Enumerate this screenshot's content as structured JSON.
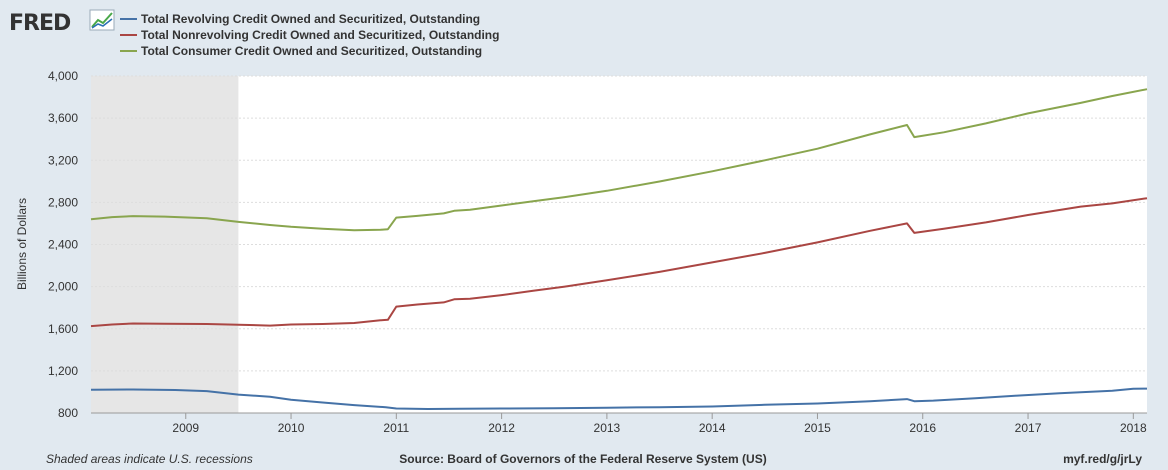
{
  "header": {
    "logo_text": "FRED",
    "logo_icon": "trend-line-icon"
  },
  "legend": [
    {
      "name": "Total Revolving Credit Owned and Securitized, Outstanding",
      "color": "#4572a7"
    },
    {
      "name": "Total Nonrevolving Credit Owned and Securitized, Outstanding",
      "color": "#aa4643"
    },
    {
      "name": "Total Consumer Credit Owned and Securitized, Outstanding",
      "color": "#89a54e"
    }
  ],
  "footer": {
    "recession_note": "Shaded areas indicate U.S. recessions",
    "source": "Source: Board of Governors of the Federal Reserve System (US)",
    "short_url": "myf.red/g/jrLy"
  },
  "chart_data": {
    "type": "line",
    "ylabel": "Billions of Dollars",
    "xlabel": "",
    "ylim": [
      800,
      4000
    ],
    "xlim": [
      2008.1,
      2018.13
    ],
    "y_ticks": [
      800,
      1200,
      1600,
      2000,
      2400,
      2800,
      3200,
      3600,
      4000
    ],
    "y_tick_labels": [
      "800",
      "1,200",
      "1,600",
      "2,000",
      "2,400",
      "2,800",
      "3,200",
      "3,600",
      "4,000"
    ],
    "x_ticks": [
      2009,
      2010,
      2011,
      2012,
      2013,
      2014,
      2015,
      2016,
      2017,
      2018
    ],
    "x_tick_labels": [
      "2009",
      "2010",
      "2011",
      "2012",
      "2013",
      "2014",
      "2015",
      "2016",
      "2017",
      "2018"
    ],
    "recessions": [
      {
        "start": 2008.1,
        "end": 2009.5
      }
    ],
    "grid": true,
    "legend_position": "top-left",
    "series": [
      {
        "name": "Total Revolving Credit Owned and Securitized, Outstanding",
        "color": "#4572a7",
        "points": [
          [
            2008.1,
            1020
          ],
          [
            2008.5,
            1023
          ],
          [
            2008.9,
            1018
          ],
          [
            2009.2,
            1008
          ],
          [
            2009.5,
            975
          ],
          [
            2009.8,
            955
          ],
          [
            2010.0,
            925
          ],
          [
            2010.3,
            900
          ],
          [
            2010.6,
            875
          ],
          [
            2010.9,
            855
          ],
          [
            2011.0,
            843
          ],
          [
            2011.3,
            838
          ],
          [
            2011.6,
            840
          ],
          [
            2012.0,
            843
          ],
          [
            2012.5,
            845
          ],
          [
            2013.0,
            850
          ],
          [
            2013.5,
            855
          ],
          [
            2014.0,
            862
          ],
          [
            2014.5,
            878
          ],
          [
            2015.0,
            890
          ],
          [
            2015.5,
            912
          ],
          [
            2015.85,
            932
          ],
          [
            2015.92,
            912
          ],
          [
            2016.1,
            918
          ],
          [
            2016.5,
            940
          ],
          [
            2016.9,
            965
          ],
          [
            2017.3,
            988
          ],
          [
            2017.8,
            1012
          ],
          [
            2018.0,
            1030
          ],
          [
            2018.13,
            1032
          ]
        ]
      },
      {
        "name": "Total Nonrevolving Credit Owned and Securitized, Outstanding",
        "color": "#aa4643",
        "points": [
          [
            2008.1,
            1625
          ],
          [
            2008.3,
            1640
          ],
          [
            2008.5,
            1650
          ],
          [
            2008.8,
            1648
          ],
          [
            2009.2,
            1645
          ],
          [
            2009.5,
            1638
          ],
          [
            2009.8,
            1630
          ],
          [
            2010.0,
            1640
          ],
          [
            2010.3,
            1645
          ],
          [
            2010.6,
            1655
          ],
          [
            2010.85,
            1680
          ],
          [
            2010.92,
            1685
          ],
          [
            2011.0,
            1810
          ],
          [
            2011.2,
            1830
          ],
          [
            2011.45,
            1850
          ],
          [
            2011.55,
            1880
          ],
          [
            2011.7,
            1885
          ],
          [
            2012.0,
            1920
          ],
          [
            2012.3,
            1960
          ],
          [
            2012.6,
            2000
          ],
          [
            2013.0,
            2060
          ],
          [
            2013.5,
            2140
          ],
          [
            2014.0,
            2230
          ],
          [
            2014.5,
            2320
          ],
          [
            2015.0,
            2420
          ],
          [
            2015.5,
            2530
          ],
          [
            2015.85,
            2600
          ],
          [
            2015.92,
            2510
          ],
          [
            2016.2,
            2550
          ],
          [
            2016.6,
            2610
          ],
          [
            2017.0,
            2680
          ],
          [
            2017.5,
            2760
          ],
          [
            2017.8,
            2790
          ],
          [
            2018.13,
            2840
          ]
        ]
      },
      {
        "name": "Total Consumer Credit Owned and Securitized, Outstanding",
        "color": "#89a54e",
        "points": [
          [
            2008.1,
            2640
          ],
          [
            2008.3,
            2660
          ],
          [
            2008.5,
            2670
          ],
          [
            2008.8,
            2665
          ],
          [
            2009.2,
            2650
          ],
          [
            2009.5,
            2615
          ],
          [
            2009.8,
            2585
          ],
          [
            2010.0,
            2568
          ],
          [
            2010.3,
            2550
          ],
          [
            2010.6,
            2535
          ],
          [
            2010.85,
            2540
          ],
          [
            2010.92,
            2545
          ],
          [
            2011.0,
            2655
          ],
          [
            2011.2,
            2672
          ],
          [
            2011.45,
            2695
          ],
          [
            2011.55,
            2720
          ],
          [
            2011.7,
            2730
          ],
          [
            2012.0,
            2770
          ],
          [
            2012.3,
            2810
          ],
          [
            2012.6,
            2850
          ],
          [
            2013.0,
            2910
          ],
          [
            2013.5,
            2998
          ],
          [
            2014.0,
            3095
          ],
          [
            2014.5,
            3200
          ],
          [
            2015.0,
            3310
          ],
          [
            2015.5,
            3445
          ],
          [
            2015.85,
            3535
          ],
          [
            2015.92,
            3420
          ],
          [
            2016.2,
            3465
          ],
          [
            2016.6,
            3550
          ],
          [
            2017.0,
            3645
          ],
          [
            2017.5,
            3745
          ],
          [
            2017.8,
            3810
          ],
          [
            2018.13,
            3875
          ]
        ]
      }
    ]
  }
}
